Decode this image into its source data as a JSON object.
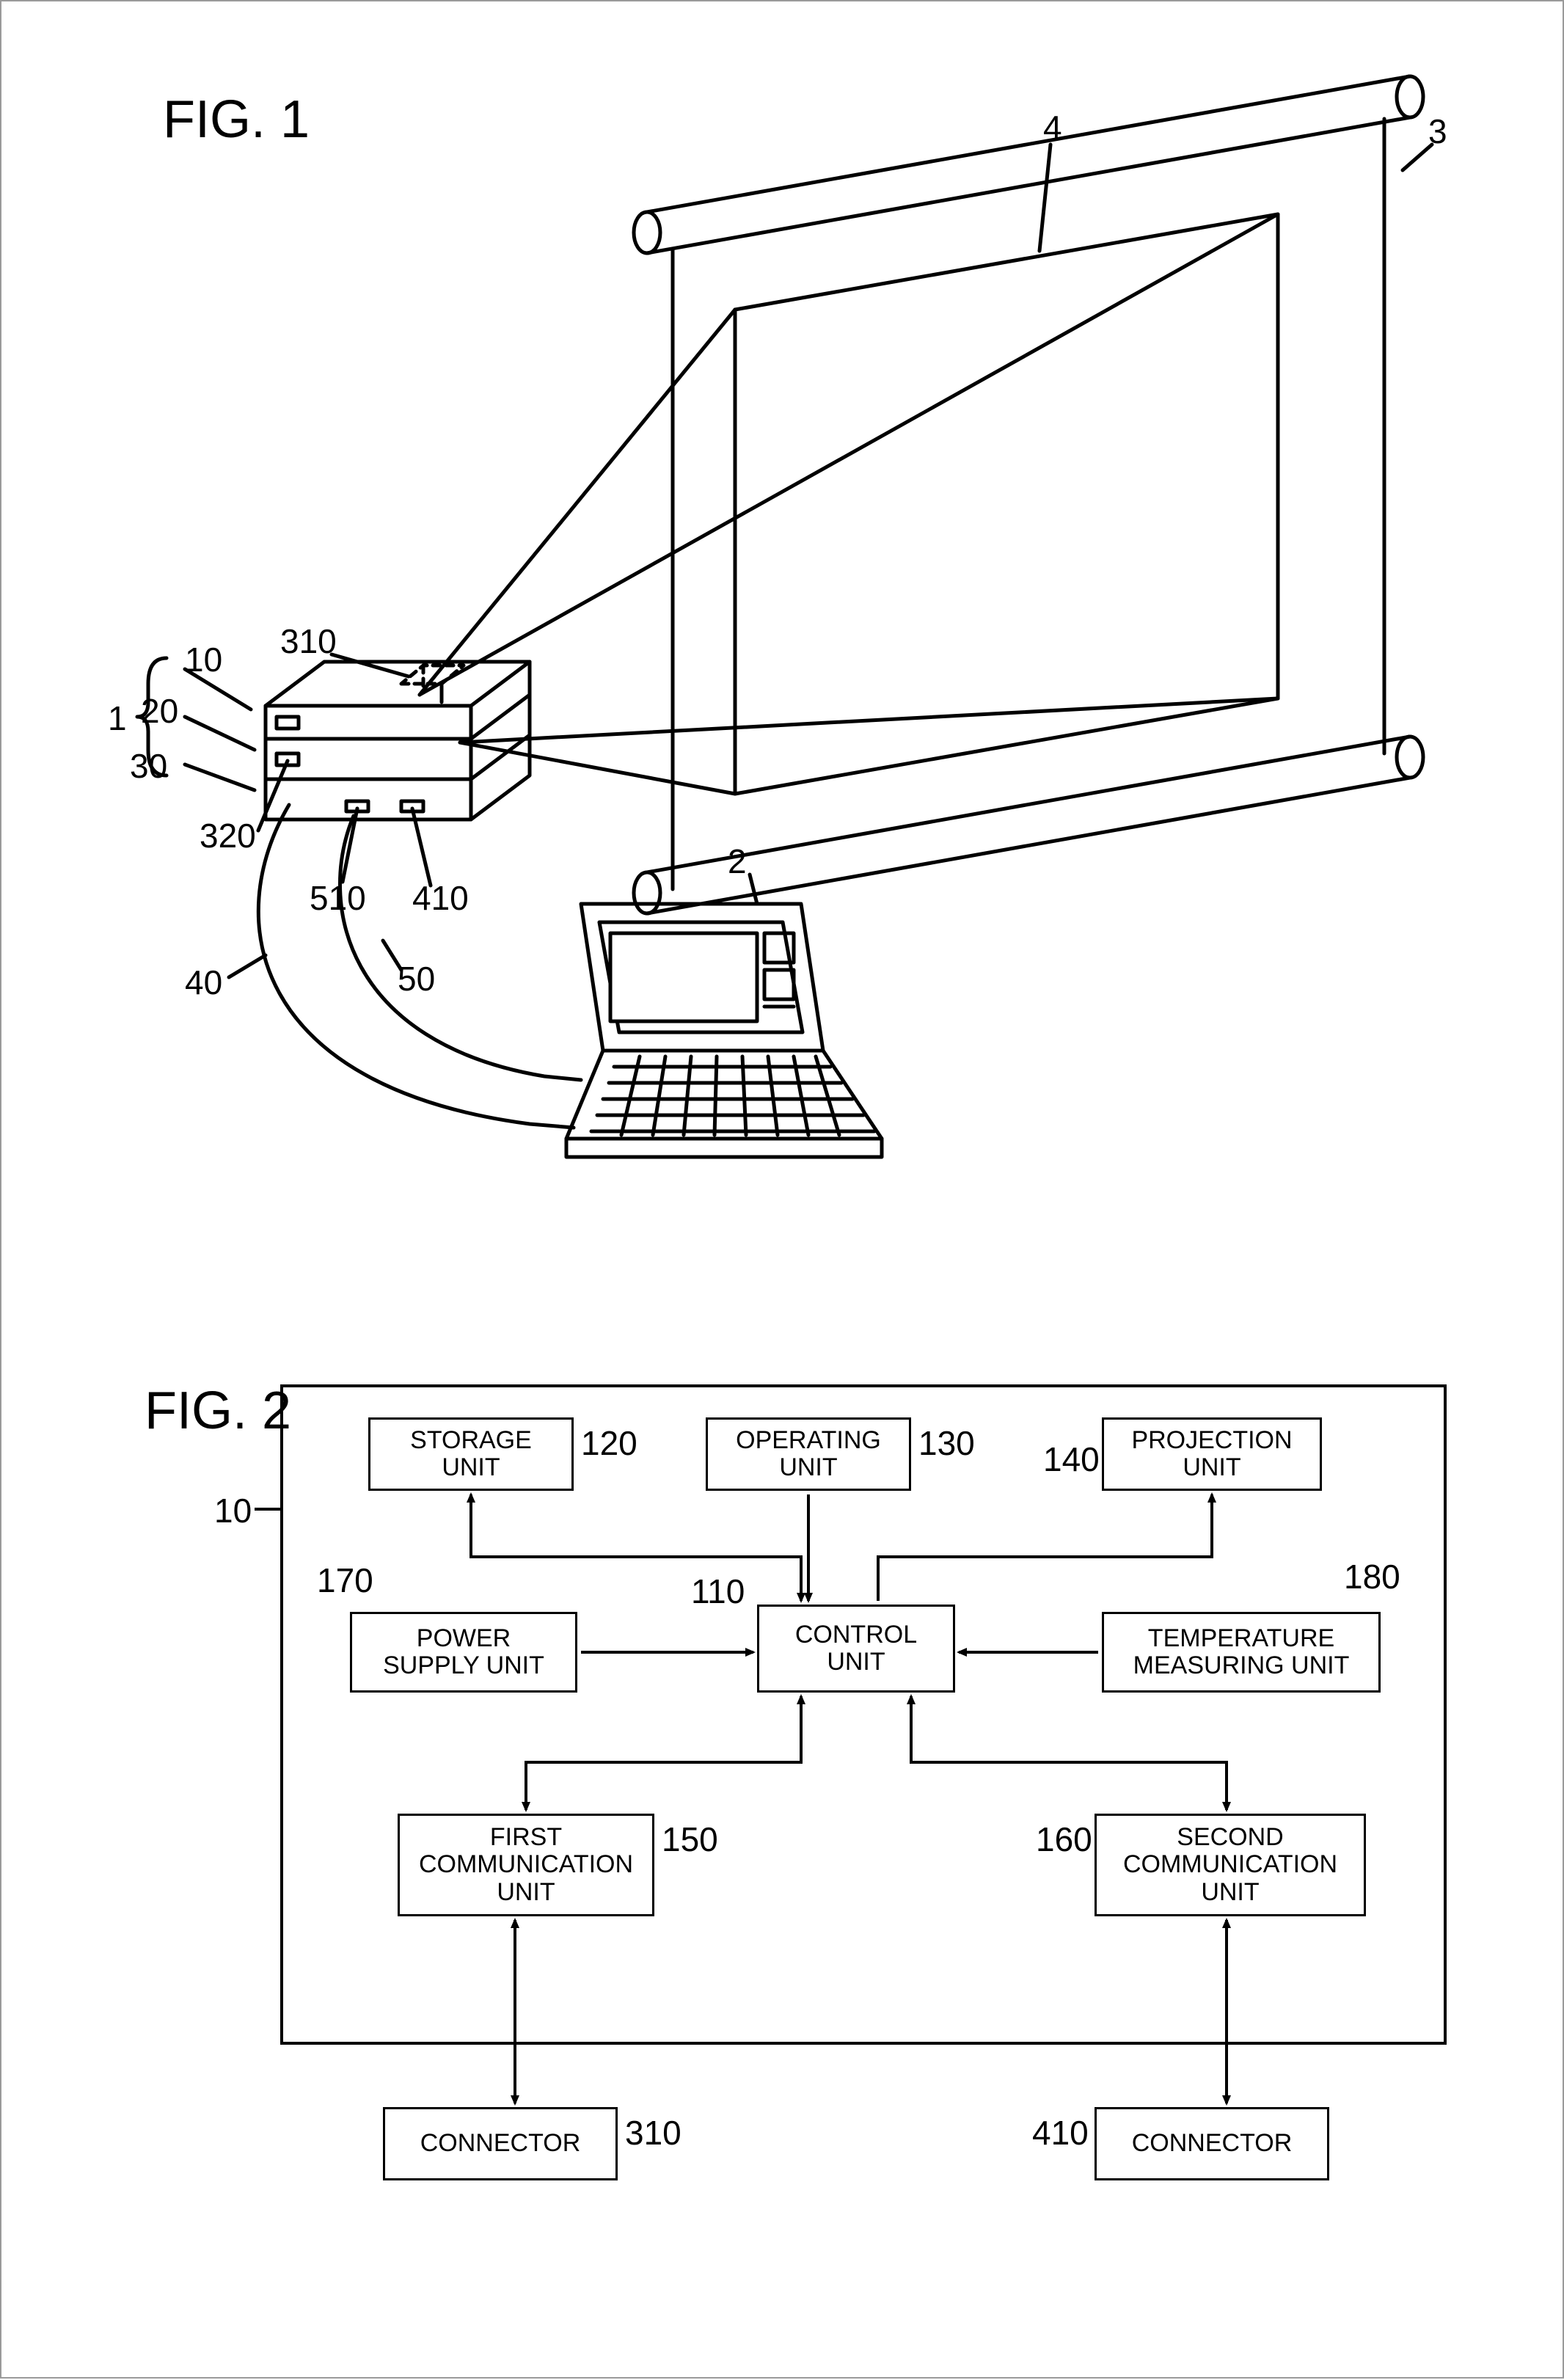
{
  "fig1": {
    "title": "FIG. 1",
    "labels": {
      "n1": "1",
      "n10": "10",
      "n20": "20",
      "n30": "30",
      "n40": "40",
      "n50": "50",
      "n310": "310",
      "n320": "320",
      "n410": "410",
      "n510": "510",
      "n2": "2",
      "n3": "3",
      "n4": "4"
    }
  },
  "fig2": {
    "title": "FIG. 2",
    "boxes": {
      "storage": "STORAGE\nUNIT",
      "operating": "OPERATING\nUNIT",
      "projection": "PROJECTION\nUNIT",
      "power": "POWER\nSUPPLY UNIT",
      "control": "CONTROL\nUNIT",
      "temperature": "TEMPERATURE\nMEASURING UNIT",
      "first_comm": "FIRST\nCOMMUNICATION\nUNIT",
      "second_comm": "SECOND\nCOMMUNICATION\nUNIT",
      "connector_left": "CONNECTOR",
      "connector_right": "CONNECTOR"
    },
    "labels": {
      "n10": "10",
      "n110": "110",
      "n120": "120",
      "n130": "130",
      "n140": "140",
      "n150": "150",
      "n160": "160",
      "n170": "170",
      "n180": "180",
      "n310": "310",
      "n410": "410"
    }
  },
  "style": {
    "stroke": "#000000",
    "stroke_width": 3,
    "stroke_width_thick": 4,
    "background": "#ffffff",
    "font_label": 46,
    "font_title": 72,
    "font_box": 34
  }
}
